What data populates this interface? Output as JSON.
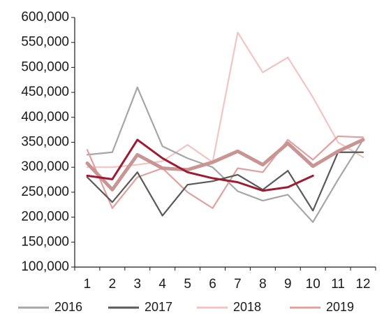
{
  "chart_data": {
    "type": "line",
    "title": "",
    "xlabel": "",
    "ylabel": "",
    "categories": [
      "1",
      "2",
      "3",
      "4",
      "5",
      "6",
      "7",
      "8",
      "9",
      "10",
      "11",
      "12"
    ],
    "ylim": [
      100000,
      600000
    ],
    "yticks": [
      "100,000",
      "150,000",
      "200,000",
      "250,000",
      "300,000",
      "350,000",
      "400,000",
      "450,000",
      "500,000",
      "550,000",
      "600,000"
    ],
    "grid": false,
    "legend_position": "bottom",
    "series": [
      {
        "name": "2016",
        "color": "#a6a6a6",
        "values": [
          325000,
          330000,
          460000,
          342000,
          318000,
          300000,
          252000,
          233000,
          245000,
          190000,
          275000,
          355000
        ]
      },
      {
        "name": "2017",
        "color": "#595959",
        "values": [
          280000,
          230000,
          290000,
          203000,
          265000,
          272000,
          285000,
          255000,
          293000,
          213000,
          330000,
          330000
        ]
      },
      {
        "name": "2018",
        "color": "#f2c4c4",
        "values": [
          300000,
          300000,
          305000,
          312000,
          345000,
          310000,
          570000,
          490000,
          520000,
          440000,
          350000,
          320000
        ]
      },
      {
        "name": "2019",
        "color": "#e0a0a0",
        "values": [
          335000,
          218000,
          280000,
          298000,
          250000,
          218000,
          298000,
          290000,
          355000,
          315000,
          362000,
          360000
        ]
      },
      {
        "name": "",
        "color": "#c99494",
        "values": [
          308000,
          255000,
          325000,
          298000,
          295000,
          310000,
          332000,
          305000,
          348000,
          302000,
          332000,
          355000
        ]
      },
      {
        "name": "",
        "color": "#9e1b32",
        "values": [
          283000,
          276000,
          355000,
          318000,
          290000,
          278000,
          270000,
          253000,
          260000,
          283000,
          null,
          null
        ]
      }
    ]
  }
}
